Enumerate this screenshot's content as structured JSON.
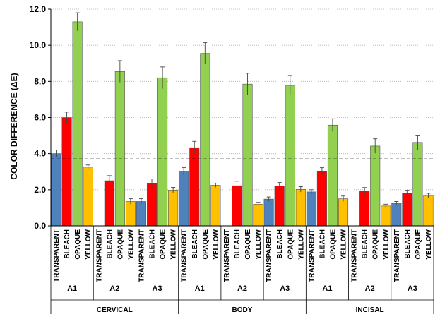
{
  "chart_data": {
    "type": "bar",
    "ylabel": "COLOR DIFFERENCE (ΔE)",
    "ylim": [
      0,
      12
    ],
    "yticks": [
      "0.0",
      "2.0",
      "4.0",
      "6.0",
      "8.0",
      "10.0",
      "12.0"
    ],
    "grid": true,
    "reference_line": 3.7,
    "categories": [
      "TRANSPARENT",
      "BLEACH",
      "OPAQUE",
      "YELLOW"
    ],
    "colors": {
      "TRANSPARENT": "#4f81bd",
      "BLEACH": "#ff0000",
      "OPAQUE": "#92d050",
      "YELLOW": "#ffc000"
    },
    "regions": [
      {
        "name": "CERVICAL",
        "groups": [
          {
            "name": "A1",
            "values": [
              4.0,
              6.0,
              11.3,
              3.25
            ],
            "errors": [
              0.2,
              0.3,
              0.5,
              0.12
            ]
          },
          {
            "name": "A2",
            "values": [
              null,
              2.5,
              8.55,
              1.35
            ],
            "errors": [
              null,
              0.28,
              0.6,
              0.15
            ]
          },
          {
            "name": "A3",
            "values": [
              1.35,
              2.35,
              8.2,
              1.98
            ],
            "errors": [
              0.15,
              0.25,
              0.6,
              0.15
            ]
          }
        ]
      },
      {
        "name": "BODY",
        "groups": [
          {
            "name": "A1",
            "values": [
              3.02,
              4.33,
              9.55,
              2.25
            ],
            "errors": [
              0.2,
              0.35,
              0.6,
              0.12
            ]
          },
          {
            "name": "A2",
            "values": [
              null,
              2.22,
              7.85,
              1.2
            ],
            "errors": [
              null,
              0.25,
              0.6,
              0.1
            ]
          },
          {
            "name": "A3",
            "values": [
              1.48,
              2.2,
              7.78,
              2.02
            ],
            "errors": [
              0.12,
              0.2,
              0.55,
              0.15
            ]
          }
        ]
      },
      {
        "name": "INCISAL",
        "groups": [
          {
            "name": "A1",
            "values": [
              1.88,
              3.02,
              5.58,
              1.5
            ],
            "errors": [
              0.12,
              0.2,
              0.35,
              0.15
            ]
          },
          {
            "name": "A2",
            "values": [
              null,
              1.92,
              4.42,
              1.1
            ],
            "errors": [
              null,
              0.2,
              0.4,
              0.1
            ]
          },
          {
            "name": "A3",
            "values": [
              1.25,
              1.82,
              4.62,
              1.68
            ],
            "errors": [
              0.1,
              0.15,
              0.4,
              0.12
            ]
          }
        ]
      }
    ]
  }
}
